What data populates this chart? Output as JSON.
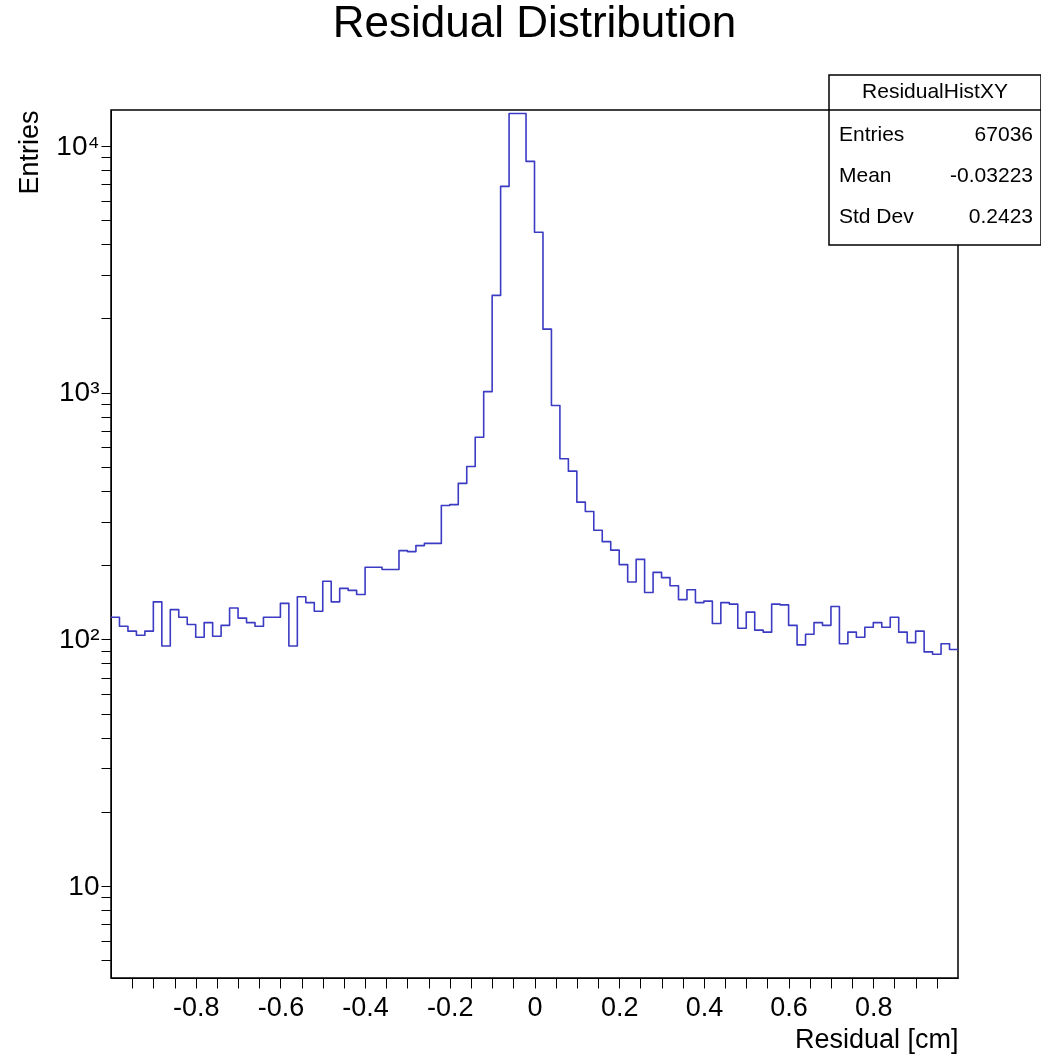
{
  "chart_data": {
    "type": "histogram",
    "title": "Residual Distribution",
    "xlabel": "Residual [cm]",
    "ylabel": "Entries",
    "bins": [
      -1.0,
      -0.98,
      -0.96,
      -0.94,
      -0.92,
      -0.9,
      -0.88,
      -0.86,
      -0.84,
      -0.82,
      -0.8,
      -0.78,
      -0.76,
      -0.74,
      -0.72,
      -0.7,
      -0.68,
      -0.66,
      -0.64,
      -0.62,
      -0.6,
      -0.58,
      -0.56,
      -0.54,
      -0.52,
      -0.5,
      -0.48,
      -0.46,
      -0.44,
      -0.42,
      -0.4,
      -0.38,
      -0.36,
      -0.34,
      -0.32,
      -0.3,
      -0.28,
      -0.26,
      -0.24,
      -0.22,
      -0.2,
      -0.18,
      -0.16,
      -0.14,
      -0.12,
      -0.1,
      -0.08,
      -0.06,
      -0.04,
      -0.02,
      0.0,
      0.02,
      0.04,
      0.06,
      0.08,
      0.1,
      0.12,
      0.14,
      0.16,
      0.18,
      0.2,
      0.22,
      0.24,
      0.26,
      0.28,
      0.3,
      0.32,
      0.34,
      0.36,
      0.38,
      0.4,
      0.42,
      0.44,
      0.46,
      0.48,
      0.5,
      0.52,
      0.54,
      0.56,
      0.58,
      0.6,
      0.62,
      0.64,
      0.66,
      0.68,
      0.7,
      0.72,
      0.74,
      0.76,
      0.78,
      0.8,
      0.82,
      0.84,
      0.86,
      0.88,
      0.9,
      0.92,
      0.94,
      0.96,
      0.98,
      1.0
    ],
    "values": [
      123,
      113,
      108,
      104,
      108,
      142,
      94,
      132,
      123,
      115,
      102,
      117,
      103,
      114,
      134,
      122,
      117,
      113,
      123,
      123,
      140,
      94,
      149,
      141,
      130,
      172,
      142,
      161,
      158,
      152,
      196,
      196,
      192,
      192,
      229,
      227,
      240,
      245,
      245,
      349,
      352,
      429,
      502,
      660,
      1010,
      2480,
      6860,
      13550,
      13550,
      8670,
      4470,
      1810,
      887,
      540,
      481,
      360,
      330,
      277,
      249,
      230,
      201,
      171,
      211,
      155,
      187,
      178,
      165,
      145,
      159,
      141,
      143,
      116,
      141,
      139,
      111,
      129,
      109,
      107,
      139,
      138,
      114,
      95,
      105,
      117,
      114,
      136,
      96,
      107,
      102,
      112,
      117,
      112,
      123,
      107,
      97,
      108,
      89,
      87,
      96,
      91
    ],
    "color": "#3b3bc4",
    "log": true,
    "grid": false,
    "xlim": [
      -1.0,
      1.0
    ],
    "xticks": [
      {
        "value": -0.95,
        "label": null
      },
      {
        "value": -0.9,
        "label": null
      },
      {
        "value": -0.85,
        "label": null
      },
      -0.8,
      {
        "value": -0.75,
        "label": null
      },
      {
        "value": -0.7,
        "label": null
      },
      {
        "value": -0.65,
        "label": null
      },
      -0.6,
      {
        "value": -0.55,
        "label": null
      },
      {
        "value": -0.5,
        "label": null
      },
      {
        "value": -0.45,
        "label": null
      },
      -0.4,
      {
        "value": -0.35,
        "label": null
      },
      {
        "value": -0.3,
        "label": null
      },
      {
        "value": -0.25,
        "label": null
      },
      -0.2,
      {
        "value": -0.15,
        "label": null
      },
      {
        "value": -0.1,
        "label": null
      },
      {
        "value": -0.05,
        "label": null
      },
      0,
      {
        "value": 0.05,
        "label": null
      },
      {
        "value": 0.1,
        "label": null
      },
      {
        "value": 0.15,
        "label": null
      },
      0.2,
      {
        "value": 0.25,
        "label": null
      },
      {
        "value": 0.3,
        "label": null
      },
      {
        "value": 0.35,
        "label": null
      },
      0.4,
      {
        "value": 0.45,
        "label": null
      },
      {
        "value": 0.5,
        "label": null
      },
      {
        "value": 0.55,
        "label": null
      },
      0.6,
      {
        "value": 0.65,
        "label": null
      },
      {
        "value": 0.7,
        "label": null
      },
      {
        "value": 0.75,
        "label": null
      },
      0.8,
      {
        "value": 0.85,
        "label": null
      },
      {
        "value": 0.9,
        "label": null
      },
      {
        "value": 0.95,
        "label": null
      }
    ],
    "ylim": [
      4.24,
      14000
    ],
    "yticks": [
      {
        "value": 5,
        "label": null
      },
      {
        "value": 6,
        "label": null
      },
      {
        "value": 7,
        "label": null
      },
      {
        "value": 8,
        "label": null
      },
      {
        "value": 9,
        "label": null
      },
      10,
      {
        "value": 20,
        "label": null
      },
      {
        "value": 30,
        "label": null
      },
      {
        "value": 40,
        "label": null
      },
      {
        "value": 50,
        "label": null
      },
      {
        "value": 60,
        "label": null
      },
      {
        "value": 70,
        "label": null
      },
      {
        "value": 80,
        "label": null
      },
      {
        "value": 90,
        "label": null
      },
      {
        "value": 100,
        "label": "10²"
      },
      {
        "value": 200,
        "label": null
      },
      {
        "value": 300,
        "label": null
      },
      {
        "value": 400,
        "label": null
      },
      {
        "value": 500,
        "label": null
      },
      {
        "value": 600,
        "label": null
      },
      {
        "value": 700,
        "label": null
      },
      {
        "value": 800,
        "label": null
      },
      {
        "value": 900,
        "label": null
      },
      {
        "value": 1000,
        "label": "10³"
      },
      {
        "value": 2000,
        "label": null
      },
      {
        "value": 3000,
        "label": null
      },
      {
        "value": 4000,
        "label": null
      },
      {
        "value": 5000,
        "label": null
      },
      {
        "value": 6000,
        "label": null
      },
      {
        "value": 7000,
        "label": null
      },
      {
        "value": 8000,
        "label": null
      },
      {
        "value": 9000,
        "label": null
      },
      {
        "value": 10000,
        "label": "10⁴"
      }
    ],
    "annotations": [
      "ResidualHistXY",
      "Entries",
      "67036",
      "Mean",
      "-0.03223",
      "Std Dev",
      "0.2423"
    ]
  }
}
